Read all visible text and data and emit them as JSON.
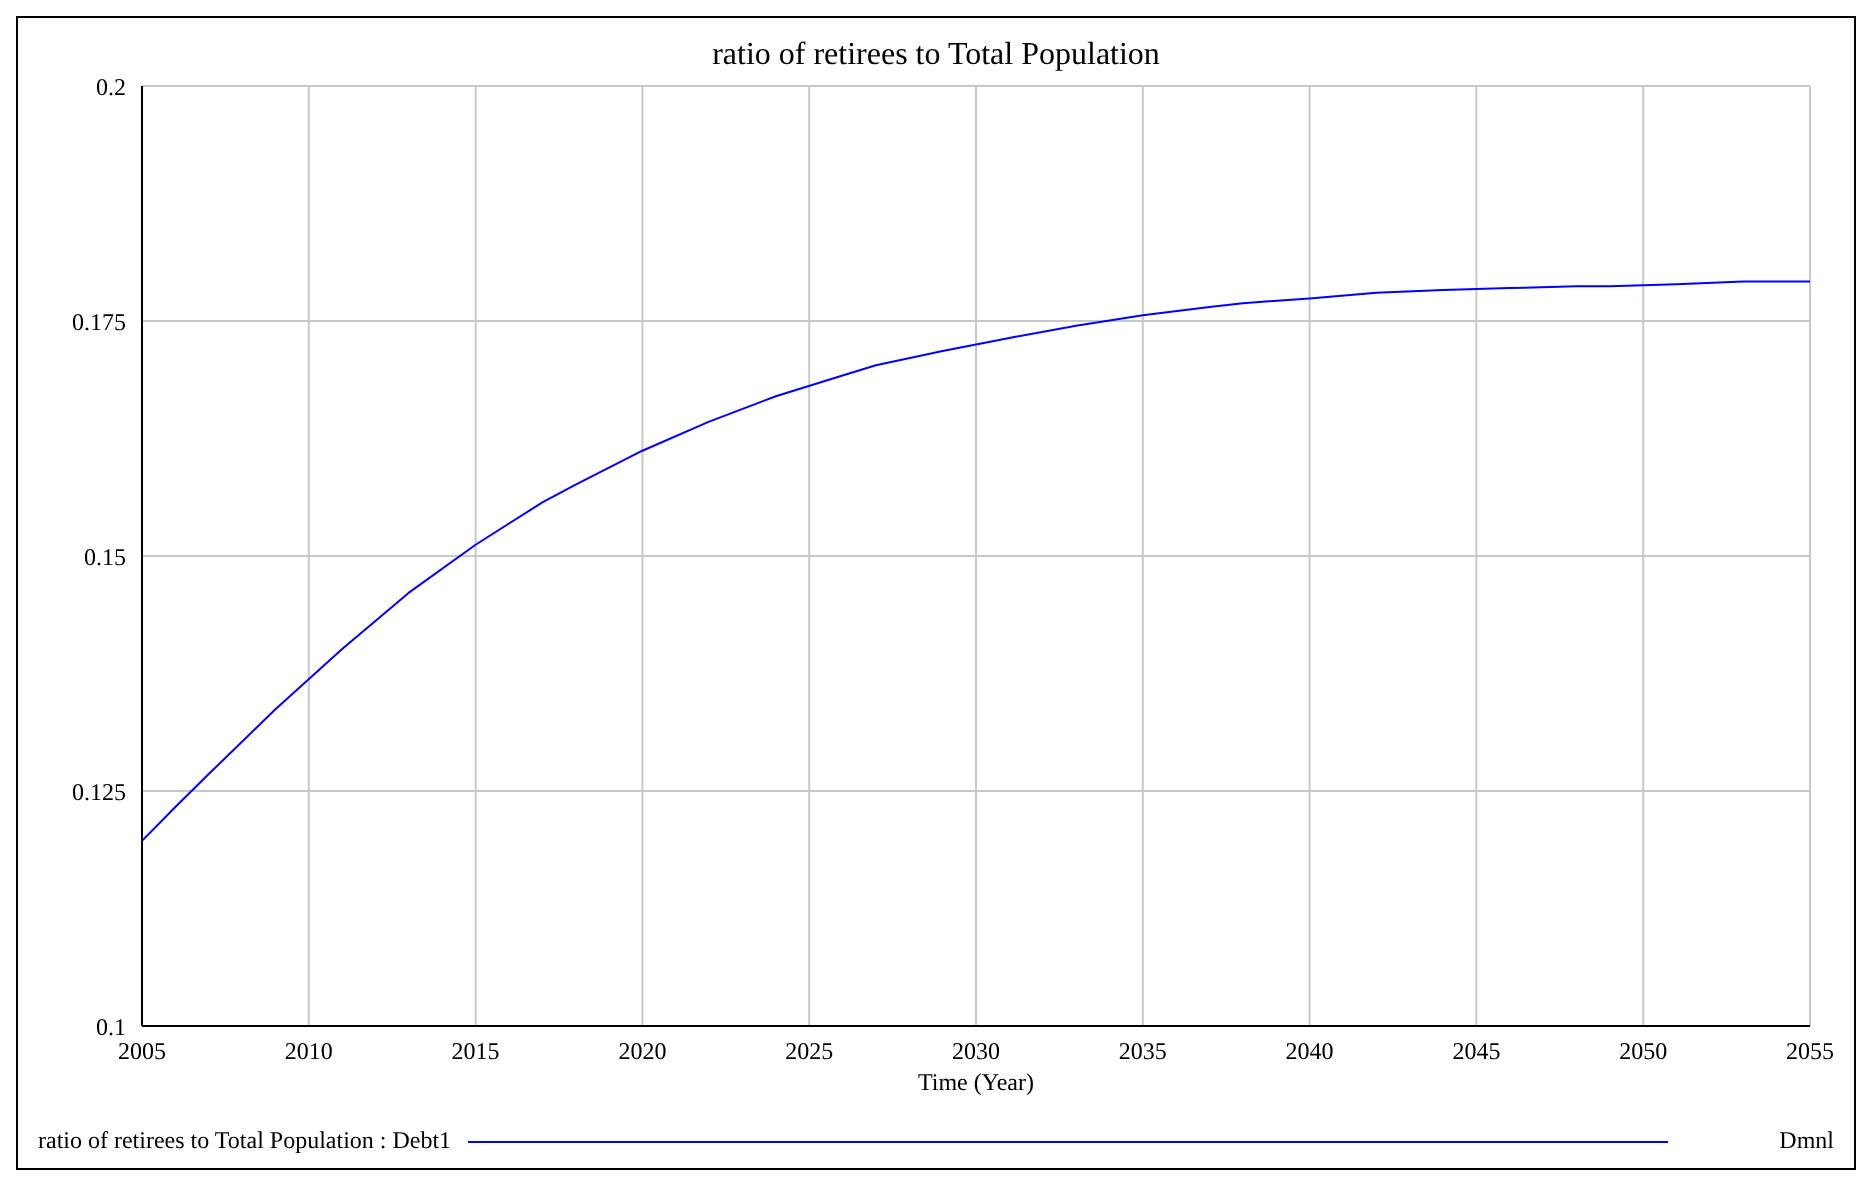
{
  "chart_data": {
    "type": "line",
    "title": "ratio of retirees to Total Population",
    "xlabel": "Time (Year)",
    "x": [
      2005,
      2006,
      2007,
      2009,
      2011,
      2013,
      2015,
      2017,
      2018,
      2020,
      2022,
      2024,
      2026,
      2027,
      2029,
      2031,
      2033,
      2035,
      2037,
      2038,
      2040,
      2042,
      2044,
      2046,
      2048,
      2049,
      2051,
      2053,
      2055
    ],
    "series": [
      {
        "name": "ratio of retirees to Total Population : Debt1",
        "color": "#0000ff",
        "values": [
          0.1197,
          0.1233,
          0.1268,
          0.1337,
          0.1401,
          0.1461,
          0.1512,
          0.1557,
          0.1576,
          0.1612,
          0.1643,
          0.167,
          0.1692,
          0.1703,
          0.1718,
          0.1732,
          0.1745,
          0.1756,
          0.1765,
          0.1769,
          0.1774,
          0.178,
          0.1783,
          0.1785,
          0.1787,
          0.1787,
          0.1789,
          0.1792,
          0.1792
        ]
      }
    ],
    "xlim": [
      2005,
      2055
    ],
    "xticks": [
      2005,
      2010,
      2015,
      2020,
      2025,
      2030,
      2035,
      2040,
      2045,
      2050,
      2055
    ],
    "ylim": [
      0.1,
      0.2
    ],
    "yticks": [
      0.1,
      0.125,
      0.15,
      0.175,
      0.2
    ],
    "grid": true,
    "legend": "bottom",
    "annotations": [
      "Dmnl"
    ]
  }
}
